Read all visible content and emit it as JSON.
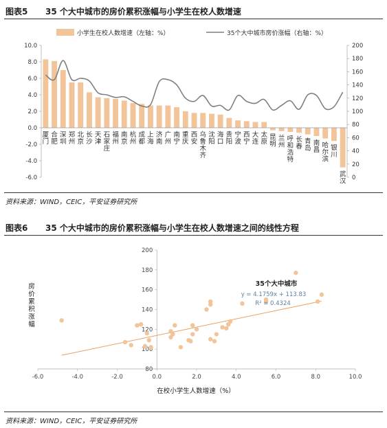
{
  "figures": [
    {
      "number": "图表5",
      "title": "35 个大中城市的房价累积涨幅与小学生在校人数增速",
      "source": "资料来源：WIND，CEIC，平安证券研究所"
    },
    {
      "number": "图表6",
      "title": "35 个大中城市的房价累积涨幅与小学生在校人数增速之间的线性方程",
      "source": "资料来源：WIND，CEIC，平安证券研究所"
    }
  ],
  "colors": {
    "bar": "#F2C49A",
    "line": "#7F7F7F",
    "scatter": "#F2C49A",
    "trend": "#E8A060",
    "annotation": "#5A7FA0"
  },
  "chart_data": [
    {
      "type": "bar",
      "title": "35 个大中城市的房价累积涨幅与小学生在校人数增速",
      "legend_position": "top",
      "categories": [
        "厦门",
        "合肥",
        "深圳",
        "郑州",
        "北京",
        "长沙",
        "天津",
        "石家庄",
        "福州",
        "南京",
        "杭州",
        "成都",
        "上海",
        "济南",
        "广州",
        "南宁",
        "重庆",
        "西安",
        "乌鲁木齐",
        "沈阳",
        "海口",
        "贵阳",
        "宁波",
        "西宁",
        "大连",
        "太原",
        "昆明",
        "兰州",
        "呼和浩特",
        "长春",
        "青岛",
        "南昌",
        "哈尔滨",
        "银川",
        "武汉"
      ],
      "series": [
        {
          "name": "小学生在校人数增速（左轴：%）",
          "type": "bar",
          "axis": "left",
          "values": [
            8.3,
            8.1,
            7.0,
            5.5,
            5.5,
            4.3,
            3.7,
            3.6,
            3.5,
            3.3,
            3.0,
            2.9,
            2.7,
            2.7,
            2.7,
            2.5,
            2.0,
            1.8,
            1.8,
            1.7,
            1.6,
            1.2,
            0.9,
            0.8,
            0.7,
            0.7,
            -0.3,
            -0.4,
            -0.5,
            -0.6,
            -0.8,
            -1.0,
            -1.3,
            -1.6,
            -4.8
          ]
        },
        {
          "name": "35个大中城市房价涨幅（右轴：%）",
          "type": "line",
          "axis": "right",
          "values": [
            155,
            148,
            177,
            148,
            150,
            146,
            128,
            125,
            121,
            122,
            115,
            108,
            110,
            145,
            148,
            140,
            120,
            115,
            124,
            108,
            109,
            102,
            124,
            115,
            112,
            118,
            102,
            109,
            116,
            103,
            125,
            124,
            104,
            107,
            129
          ]
        }
      ],
      "y_left": {
        "min": -6,
        "max": 10,
        "ticks": [
          "-6.0",
          "-4.0",
          "-2.0",
          "0.0",
          "2.0",
          "4.0",
          "6.0",
          "8.0",
          "10.0"
        ]
      },
      "y_right": {
        "min": 0,
        "max": 200,
        "ticks": [
          "0",
          "20",
          "40",
          "60",
          "80",
          "100",
          "120",
          "140",
          "160",
          "180",
          "200"
        ]
      }
    },
    {
      "type": "scatter",
      "title": "35 个大中城市的房价累积涨幅与小学生在校人数增速之间的线性方程",
      "xlabel": "在校小学生人数增速（%）",
      "ylabel": "房价累积涨幅",
      "xlim": [
        -6,
        10
      ],
      "ylim": [
        80,
        200
      ],
      "x_ticks": [
        "-6.0",
        "-4.0",
        "-2.0",
        "0.0",
        "2.0",
        "4.0",
        "6.0",
        "8.0",
        "10.0"
      ],
      "y_ticks": [
        "80",
        "100",
        "120",
        "140",
        "160",
        "180",
        "200"
      ],
      "series": [
        {
          "name": "35个大中城市",
          "points": [
            [
              8.3,
              155
            ],
            [
              8.1,
              148
            ],
            [
              7.0,
              177
            ],
            [
              5.5,
              148
            ],
            [
              5.5,
              150
            ],
            [
              4.3,
              146
            ],
            [
              3.7,
              128
            ],
            [
              3.6,
              125
            ],
            [
              3.5,
              121
            ],
            [
              3.3,
              122
            ],
            [
              3.0,
              115
            ],
            [
              2.9,
              108
            ],
            [
              2.7,
              110
            ],
            [
              2.7,
              145
            ],
            [
              2.7,
              148
            ],
            [
              2.5,
              140
            ],
            [
              2.0,
              120
            ],
            [
              1.8,
              115
            ],
            [
              1.8,
              124
            ],
            [
              1.7,
              108
            ],
            [
              1.6,
              109
            ],
            [
              1.2,
              102
            ],
            [
              0.9,
              124
            ],
            [
              0.8,
              115
            ],
            [
              0.7,
              112
            ],
            [
              0.7,
              118
            ],
            [
              -0.3,
              102
            ],
            [
              -0.4,
              109
            ],
            [
              -0.5,
              116
            ],
            [
              -0.6,
              103
            ],
            [
              -0.8,
              125
            ],
            [
              -1.0,
              124
            ],
            [
              -1.3,
              104
            ],
            [
              -1.6,
              107
            ],
            [
              -4.8,
              129
            ]
          ]
        }
      ],
      "trendline": {
        "slope": 4.1759,
        "intercept": 113.83,
        "x_range": [
          -4.8,
          8.3
        ]
      },
      "annotations": {
        "series_label": "35个大中城市",
        "equation": "y = 4.1759x + 113.83",
        "r2": "R² = 0.4324"
      }
    }
  ]
}
